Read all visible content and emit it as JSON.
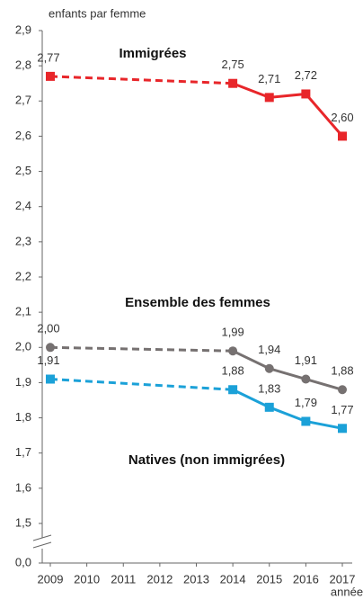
{
  "chart_data": {
    "type": "line",
    "y_axis_label": "enfants par femme",
    "x_axis_label": "année",
    "x": [
      2009,
      2014,
      2015,
      2016,
      2017
    ],
    "xlim": [
      2009,
      2017
    ],
    "xticks": [
      2009,
      2010,
      2011,
      2012,
      2013,
      2014,
      2015,
      2016,
      2017
    ],
    "ylim": [
      0,
      2.9
    ],
    "axis_break": [
      0,
      1.5
    ],
    "yticks": [
      {
        "value": 0,
        "label": "0,0"
      },
      {
        "value": 1.5,
        "label": "1,5"
      },
      {
        "value": 1.6,
        "label": "1,6"
      },
      {
        "value": 1.7,
        "label": "1,7"
      },
      {
        "value": 1.8,
        "label": "1,8"
      },
      {
        "value": 1.9,
        "label": "1,9"
      },
      {
        "value": 2.0,
        "label": "2,0"
      },
      {
        "value": 2.1,
        "label": "2,1"
      },
      {
        "value": 2.2,
        "label": "2,2"
      },
      {
        "value": 2.3,
        "label": "2,3"
      },
      {
        "value": 2.4,
        "label": "2,4"
      },
      {
        "value": 2.5,
        "label": "2,5"
      },
      {
        "value": 2.6,
        "label": "2,6"
      },
      {
        "value": 2.7,
        "label": "2,7"
      },
      {
        "value": 2.8,
        "label": "2,8"
      },
      {
        "value": 2.9,
        "label": "2,9"
      }
    ],
    "grid": false,
    "series": [
      {
        "name": "Immigrées",
        "color": "#e8262a",
        "marker": "square",
        "values": [
          2.77,
          2.75,
          2.71,
          2.72,
          2.6
        ],
        "value_labels": [
          "2,77",
          "2,75",
          "2,71",
          "2,72",
          "2,60"
        ]
      },
      {
        "name": "Ensemble des femmes",
        "color": "#767171",
        "marker": "circle",
        "values": [
          2.0,
          1.99,
          1.94,
          1.91,
          1.88
        ],
        "value_labels": [
          "2,00",
          "1,99",
          "1,94",
          "1,91",
          "1,88"
        ]
      },
      {
        "name": "Natives (non immigrées)",
        "color": "#1ba1d8",
        "marker": "square",
        "values": [
          1.91,
          1.88,
          1.83,
          1.79,
          1.77
        ],
        "value_labels": [
          "1,91",
          "1,88",
          "1,83",
          "1,79",
          "1,77"
        ]
      }
    ]
  }
}
